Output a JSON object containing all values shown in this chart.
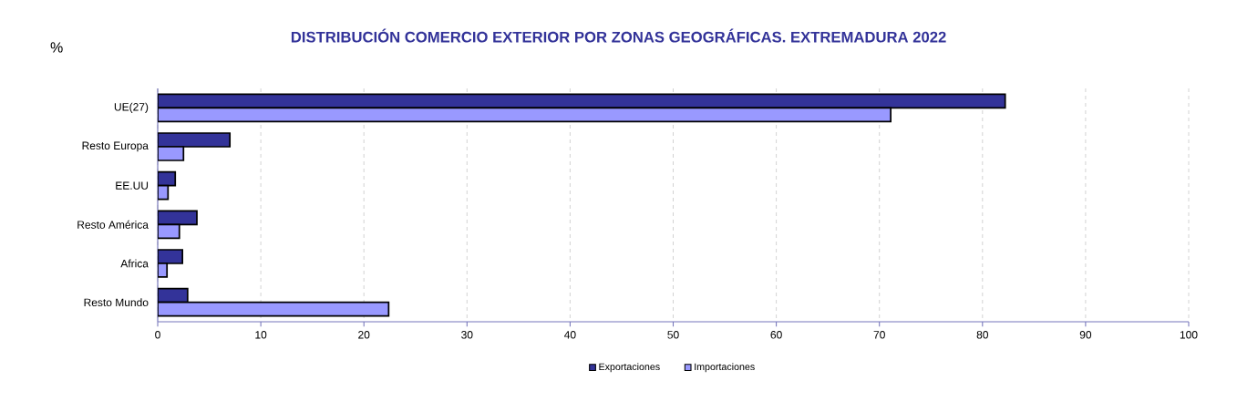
{
  "chart_data": {
    "type": "bar",
    "orientation": "horizontal",
    "title": "DISTRIBUCIÓN COMERCIO EXTERIOR POR ZONAS GEOGRÁFICAS. EXTREMADURA 2022",
    "ylabel": "%",
    "categories": [
      "UE(27)",
      "Resto Europa",
      "EE.UU",
      "Resto América",
      "Africa",
      "Resto Mundo"
    ],
    "series": [
      {
        "name": "Exportaciones",
        "color": "#333399",
        "values": [
          82.2,
          7.0,
          1.7,
          3.8,
          2.4,
          2.9
        ]
      },
      {
        "name": "Importaciones",
        "color": "#9999ff",
        "values": [
          71.1,
          2.5,
          1.0,
          2.1,
          0.9,
          22.4
        ]
      }
    ],
    "xlim": [
      0,
      100
    ],
    "xticks": [
      0,
      10,
      20,
      30,
      40,
      50,
      60,
      70,
      80,
      90,
      100
    ],
    "grid": "x",
    "legend": "bottom"
  }
}
